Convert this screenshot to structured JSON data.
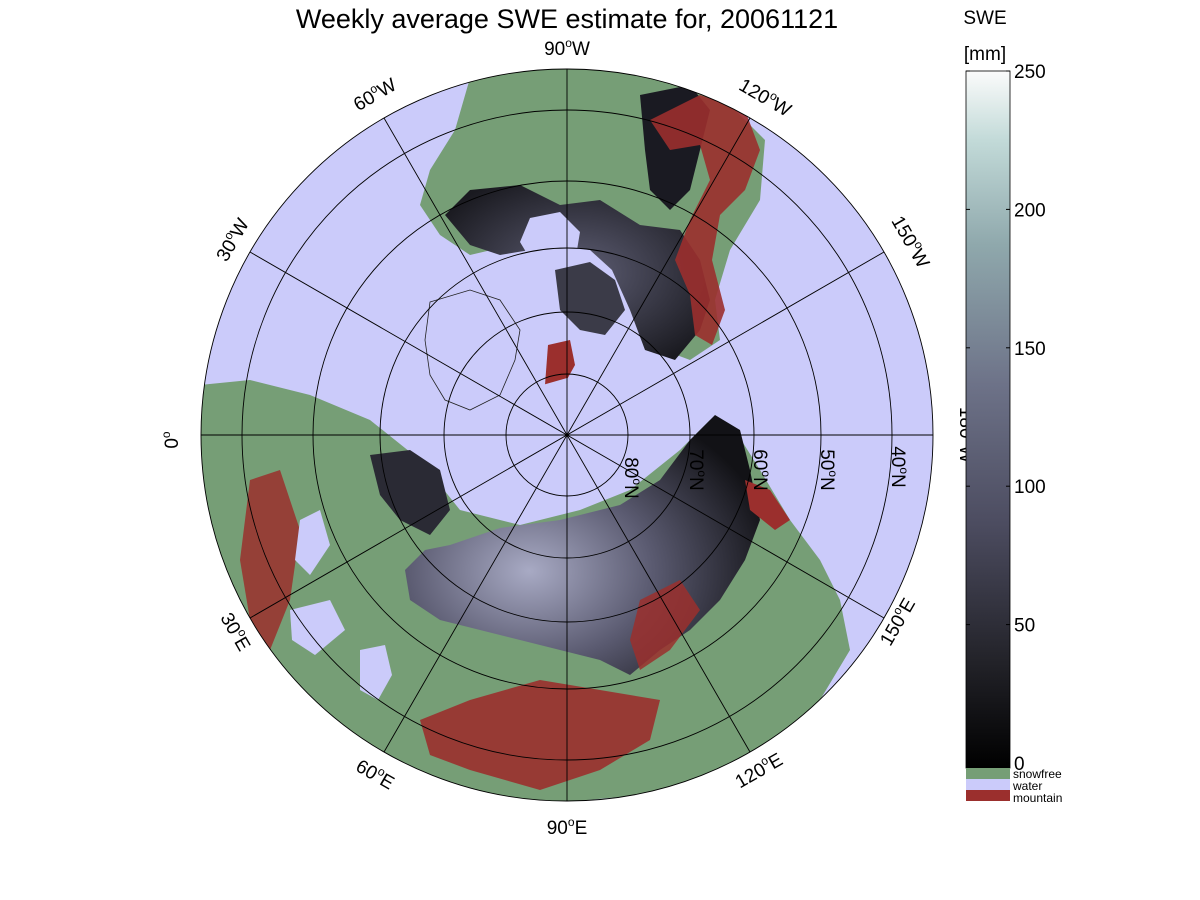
{
  "title": "Weekly average SWE estimate for, 20061121",
  "colorbar": {
    "title_line1": "SWE",
    "title_line2": "[mm]",
    "min": 0,
    "max": 250,
    "ticks": [
      "250",
      "200",
      "150",
      "100",
      "50",
      "0"
    ],
    "tick_values": [
      250,
      200,
      150,
      100,
      50,
      0
    ],
    "categories": [
      {
        "label": "snowfree",
        "color": "#769e76"
      },
      {
        "label": "water",
        "color": "#cbcbfa"
      },
      {
        "label": "mountain",
        "color": "#9b2f2d"
      }
    ]
  },
  "colors": {
    "ocean": "#cbcbfa",
    "snowfree_land": "#769e76",
    "mountain": "#9b2f2d",
    "snow_low": "#141418",
    "snow_mid": "#5a5a70",
    "snow_high": "#9a9ab8"
  },
  "map": {
    "projection": "north polar stereographic",
    "meridian_labels": [
      {
        "base": "90",
        "deg": "o",
        "dir": "W"
      },
      {
        "base": "120",
        "deg": "o",
        "dir": "W"
      },
      {
        "base": "150",
        "deg": "o",
        "dir": "W"
      },
      {
        "base": "180",
        "deg": "o",
        "dir": "W"
      },
      {
        "base": "150",
        "deg": "o",
        "dir": "E"
      },
      {
        "base": "120",
        "deg": "o",
        "dir": "E"
      },
      {
        "base": "90",
        "deg": "o",
        "dir": "E"
      },
      {
        "base": "60",
        "deg": "o",
        "dir": "E"
      },
      {
        "base": "30",
        "deg": "o",
        "dir": "E"
      },
      {
        "base": "0",
        "deg": "o",
        "dir": ""
      },
      {
        "base": "30",
        "deg": "o",
        "dir": "W"
      },
      {
        "base": "60",
        "deg": "o",
        "dir": "W"
      }
    ],
    "parallel_labels": [
      {
        "base": "80",
        "deg": "o",
        "dir": "N"
      },
      {
        "base": "70",
        "deg": "o",
        "dir": "N"
      },
      {
        "base": "60",
        "deg": "o",
        "dir": "N"
      },
      {
        "base": "50",
        "deg": "o",
        "dir": "N"
      },
      {
        "base": "40",
        "deg": "o",
        "dir": "N"
      }
    ]
  }
}
